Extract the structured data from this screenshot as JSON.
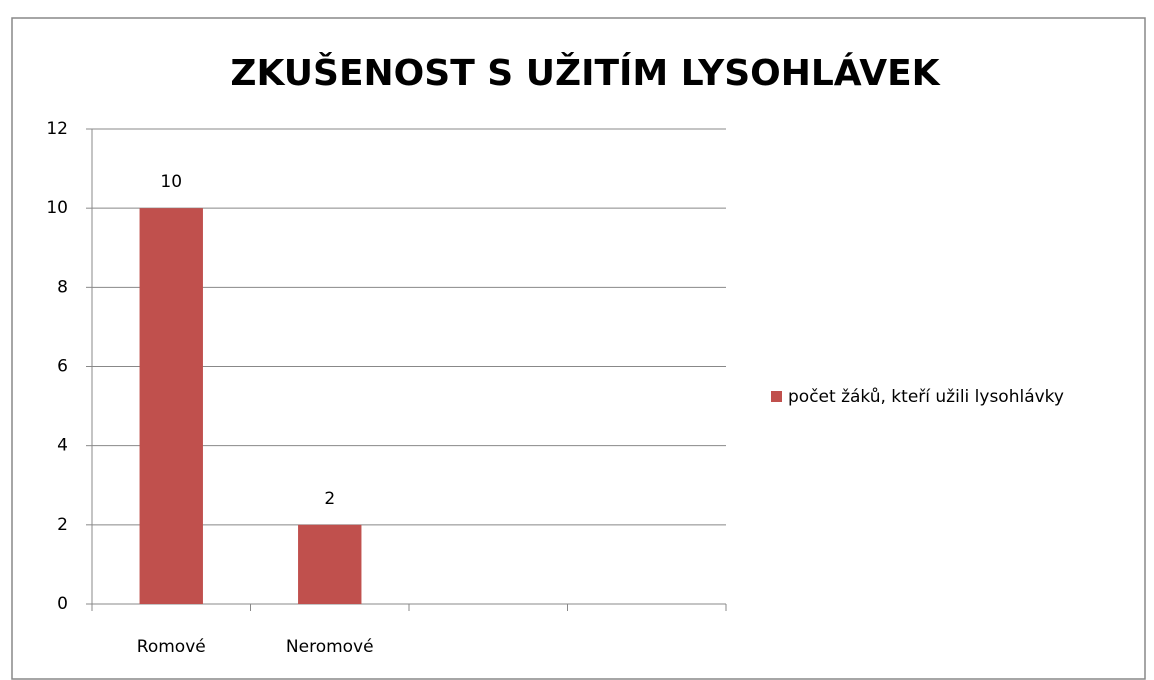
{
  "chart_data": {
    "type": "bar",
    "title": "ZKUŠENOST S UŽITÍM LYSOHLÁVEK",
    "categories": [
      "Romové",
      "Neromové",
      null,
      null
    ],
    "series": [
      {
        "name": "počet žáků, kteří užili lysohlávky",
        "color": "#c0504d",
        "values": [
          10,
          2,
          null,
          null
        ]
      }
    ],
    "ylim": [
      0,
      12
    ],
    "yticks": [
      0,
      2,
      4,
      6,
      8,
      10,
      12
    ],
    "grid": true,
    "legend": "right",
    "data_labels": true
  }
}
